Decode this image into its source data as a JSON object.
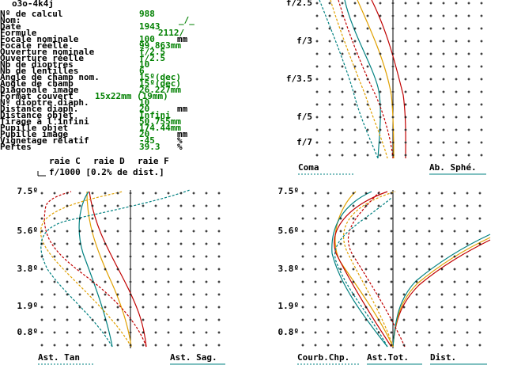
{
  "header": {
    "title": "o3o-4k4j"
  },
  "parameters": [
    {
      "label": "Nº de calcul",
      "value": "988"
    },
    {
      "label": "Nom:",
      "value": "_/_"
    },
    {
      "label": "Date",
      "value": "1943"
    },
    {
      "label": "Formule",
      "value": "2112/"
    },
    {
      "label": "Focale nominale",
      "value": "100",
      "unit": "mm"
    },
    {
      "label": "Focale réelle",
      "value": "99.863mm"
    },
    {
      "label": "Ouverture nominale",
      "value": "f/2.5"
    },
    {
      "label": "Ouverture réelle",
      "value": "f/2.5"
    },
    {
      "label": "Nb de dioptres",
      "value": "10"
    },
    {
      "label": "Nb de lentilles",
      "value": "6"
    },
    {
      "label": "Angle de champ nom.",
      "value": "15º(dec)"
    },
    {
      "label": "Angle de champ",
      "value": "15º(dec)"
    },
    {
      "label": "Diagonale image",
      "value": "26.227mm"
    },
    {
      "label": "Format couvert",
      "value": "15x22mm (19mm)"
    },
    {
      "label": "Nº dioptre diaph.",
      "value": "10"
    },
    {
      "label": "Distance diaph.",
      "value": "20",
      "unit": "mm"
    },
    {
      "label": "Distance objet",
      "value": "Infini"
    },
    {
      "label": "Tirage à l'infini",
      "value": "50.755mm"
    },
    {
      "label": "Pupille objet",
      "value": "174.44mm"
    },
    {
      "label": "Pupille image",
      "value": "20",
      "unit": "mm"
    },
    {
      "label": "Vignetage relatif",
      "value": "-45",
      "unit": "%"
    },
    {
      "label": "Pertes",
      "value": "39.3",
      "unit": "%"
    }
  ],
  "legend": {
    "lines": [
      "raie C",
      "raie D",
      "raie F"
    ],
    "scale": "f/1000 [0.2% de dist.]"
  },
  "plots": {
    "aperture": {
      "ticks": [
        "f/2.5",
        "f/3",
        "f/3.5",
        "f/5",
        "f/7"
      ],
      "labels": [
        "Coma",
        "Ab. Sphé."
      ]
    },
    "astigmatism": {
      "ticks": [
        "7.5º",
        "5.6º",
        "3.8º",
        "1.9º",
        "0.8º"
      ],
      "labels": [
        "Ast. Tan",
        "Ast. Sag."
      ]
    },
    "field": {
      "ticks": [
        "7.5º",
        "5.6º",
        "3.8º",
        "1.9º",
        "0.8º"
      ],
      "labels": [
        "Courb.Chp.",
        "Ast.Tot.",
        "Dist."
      ]
    }
  }
}
